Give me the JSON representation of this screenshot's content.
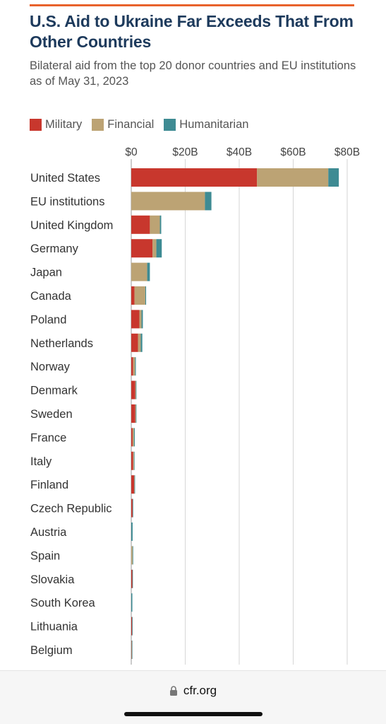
{
  "header": {
    "title": "U.S. Aid to Ukraine Far Exceeds That From Other Countries",
    "subtitle": "Bilateral aid from the top 20 donor countries and EU institutions as of May 31, 2023",
    "accent_color": "#e8622c"
  },
  "footer": {
    "url": "cfr.org",
    "lock_icon": "lock-icon"
  },
  "chart_data": {
    "type": "bar",
    "orientation": "horizontal",
    "stacked": true,
    "title": "U.S. Aid to Ukraine Far Exceeds That From Other Countries",
    "subtitle": "Bilateral aid from the top 20 donor countries and EU institutions as of May 31, 2023",
    "xlabel": "",
    "ylabel": "",
    "xlim": [
      0,
      80
    ],
    "x_ticks": [
      0,
      20,
      40,
      60,
      80
    ],
    "x_tick_labels": [
      "$0",
      "$20B",
      "$40B",
      "$60B",
      "$80B"
    ],
    "grid": "vertical",
    "legend_position": "top-left",
    "categories": [
      "United States",
      "EU institutions",
      "United Kingdom",
      "Germany",
      "Japan",
      "Canada",
      "Poland",
      "Netherlands",
      "Norway",
      "Denmark",
      "Sweden",
      "France",
      "Italy",
      "Finland",
      "Czech Republic",
      "Austria",
      "Spain",
      "Slovakia",
      "South Korea",
      "Lithuania",
      "Belgium"
    ],
    "series": [
      {
        "name": "Military",
        "color": "#c8372d",
        "values": [
          46.6,
          0,
          6.9,
          7.9,
          0,
          1.2,
          3.0,
          2.5,
          0.7,
          1.5,
          1.5,
          0.5,
          0.7,
          1.1,
          0.5,
          0,
          0,
          0.4,
          0,
          0.3,
          0.1
        ]
      },
      {
        "name": "Financial",
        "color": "#bca374",
        "values": [
          26.4,
          27.3,
          3.7,
          1.4,
          5.9,
          4.0,
          0.8,
          1.0,
          0.7,
          0.2,
          0.2,
          0.5,
          0.3,
          0.1,
          0,
          0,
          0.5,
          0,
          0,
          0,
          0.1
        ]
      },
      {
        "name": "Humanitarian",
        "color": "#3e8b93",
        "values": [
          3.9,
          2.4,
          0.5,
          2.0,
          1.0,
          0.3,
          0.5,
          0.6,
          0.3,
          0.2,
          0.2,
          0.3,
          0.1,
          0.1,
          0.2,
          0.5,
          0.1,
          0.1,
          0.4,
          0.1,
          0.1
        ]
      }
    ]
  }
}
